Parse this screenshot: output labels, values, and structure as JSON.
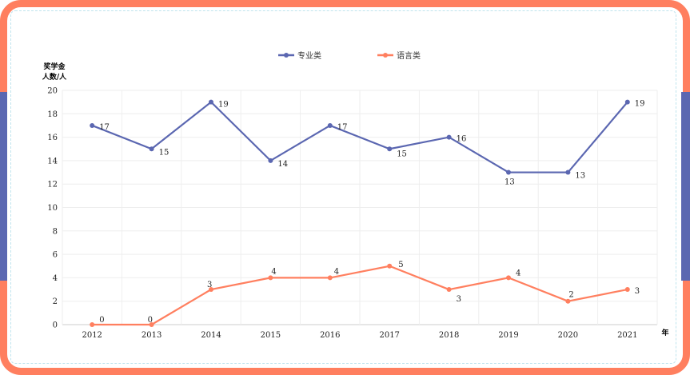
{
  "chart_data": {
    "type": "line",
    "title": "",
    "xlabel": "年",
    "ylabel": "奖学金\n人数/人",
    "categories": [
      "2012",
      "2013",
      "2014",
      "2015",
      "2016",
      "2017",
      "2018",
      "2019",
      "2020",
      "2021"
    ],
    "ylim": [
      0,
      20
    ],
    "yticks": [
      0,
      2,
      4,
      6,
      8,
      10,
      12,
      14,
      16,
      18,
      20
    ],
    "grid": true,
    "legend_position": "top",
    "series": [
      {
        "name": "专业类",
        "color": "#5b67b1",
        "values": [
          17,
          15,
          19,
          14,
          17,
          15,
          16,
          13,
          13,
          19
        ]
      },
      {
        "name": "语言类",
        "color": "#ff7f5f",
        "values": [
          0,
          0,
          3,
          4,
          4,
          5,
          3,
          4,
          2,
          3
        ]
      }
    ]
  }
}
